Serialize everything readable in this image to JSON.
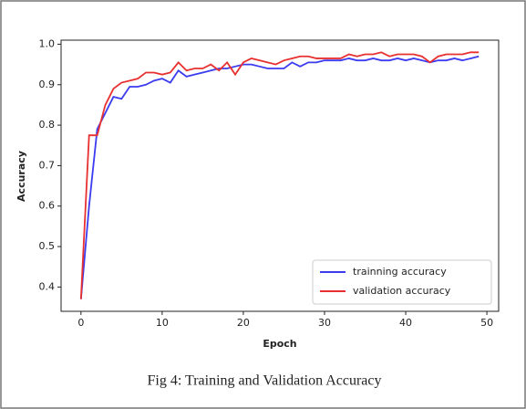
{
  "chart_data": {
    "type": "line",
    "caption": "Fig 4: Training and Validation Accuracy",
    "xlabel": "Epoch",
    "ylabel": "Accuracy",
    "x": [
      0,
      1,
      2,
      3,
      4,
      5,
      6,
      7,
      8,
      9,
      10,
      11,
      12,
      13,
      14,
      15,
      16,
      17,
      18,
      19,
      20,
      21,
      22,
      23,
      24,
      25,
      26,
      27,
      28,
      29,
      30,
      31,
      32,
      33,
      34,
      35,
      36,
      37,
      38,
      39,
      40,
      41,
      42,
      43,
      44,
      45,
      46,
      47,
      48,
      49
    ],
    "series": [
      {
        "name": "trainning accuracy",
        "color": "#3b3bf0",
        "values": [
          0.37,
          0.6,
          0.79,
          0.83,
          0.87,
          0.865,
          0.895,
          0.895,
          0.9,
          0.91,
          0.915,
          0.905,
          0.935,
          0.92,
          0.925,
          0.93,
          0.935,
          0.94,
          0.94,
          0.945,
          0.95,
          0.95,
          0.945,
          0.94,
          0.94,
          0.94,
          0.955,
          0.945,
          0.955,
          0.955,
          0.96,
          0.96,
          0.96,
          0.965,
          0.96,
          0.96,
          0.965,
          0.96,
          0.96,
          0.965,
          0.96,
          0.965,
          0.96,
          0.955,
          0.96,
          0.96,
          0.965,
          0.96,
          0.965,
          0.97
        ]
      },
      {
        "name": "validation accuracy",
        "color": "#e83030",
        "values": [
          0.37,
          0.775,
          0.775,
          0.85,
          0.89,
          0.905,
          0.91,
          0.915,
          0.93,
          0.93,
          0.925,
          0.93,
          0.955,
          0.935,
          0.94,
          0.94,
          0.95,
          0.935,
          0.955,
          0.925,
          0.955,
          0.965,
          0.96,
          0.955,
          0.95,
          0.96,
          0.965,
          0.97,
          0.97,
          0.965,
          0.965,
          0.965,
          0.965,
          0.975,
          0.97,
          0.975,
          0.975,
          0.98,
          0.97,
          0.975,
          0.975,
          0.975,
          0.97,
          0.955,
          0.97,
          0.975,
          0.975,
          0.975,
          0.98,
          0.98
        ]
      }
    ],
    "xlim": [
      -2.45,
      51.45
    ],
    "xticks": [
      0,
      10,
      20,
      30,
      40,
      50
    ],
    "ylim": [
      0.34,
      1.01
    ],
    "yticks": [
      0.4,
      0.5,
      0.6,
      0.7,
      0.8,
      0.9,
      {
        "value": 1,
        "label": "1.0"
      }
    ],
    "legend": "lower right",
    "grid": false
  }
}
